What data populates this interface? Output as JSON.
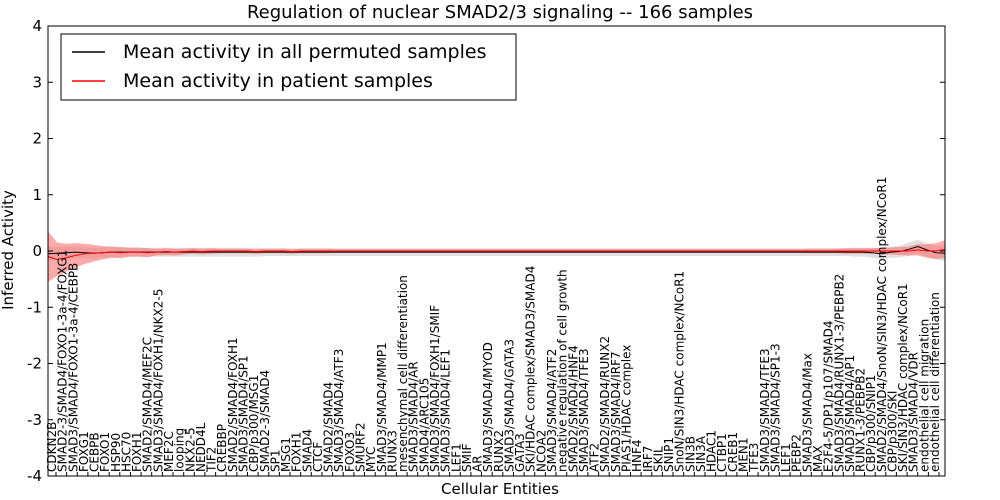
{
  "chart_data": {
    "type": "line",
    "title": "Regulation of nuclear SMAD2/3 signaling -- 166 samples",
    "xlabel": "Cellular Entities",
    "ylabel": "Inferred Activity",
    "ylim": [
      -4,
      4
    ],
    "yticks": [
      -4,
      -3,
      -2,
      -1,
      0,
      1,
      2,
      3,
      4
    ],
    "legend_position": "top-left",
    "series": [
      {
        "name": "Mean activity in all permuted samples",
        "color": "#000000",
        "band_color": "#bbbbbb",
        "values": [
          -0.05,
          -0.04,
          -0.03,
          -0.02,
          -0.03,
          -0.04,
          -0.03,
          -0.02,
          -0.02,
          -0.02,
          -0.02,
          -0.02,
          -0.02,
          -0.02,
          -0.02,
          -0.02,
          -0.02,
          -0.02,
          -0.02,
          -0.02,
          -0.02,
          -0.02,
          -0.02,
          -0.02,
          -0.02,
          -0.02,
          -0.02,
          -0.02,
          -0.02,
          -0.02,
          -0.02,
          -0.02,
          -0.02,
          -0.02,
          -0.02,
          -0.02,
          -0.02,
          -0.02,
          -0.02,
          -0.02,
          -0.02,
          -0.02,
          -0.02,
          -0.02,
          -0.02,
          -0.02,
          -0.02,
          -0.02,
          -0.02,
          -0.02,
          -0.02,
          -0.02,
          -0.02,
          -0.02,
          -0.02,
          -0.02,
          -0.02,
          -0.02,
          -0.02,
          -0.02,
          -0.02,
          -0.02,
          -0.02,
          -0.02,
          -0.02,
          -0.02,
          -0.02,
          -0.02,
          -0.02,
          -0.02,
          -0.02,
          -0.02,
          -0.02,
          -0.02,
          -0.02,
          -0.02,
          -0.02,
          -0.02,
          -0.02,
          -0.02,
          -0.02,
          -0.02,
          -0.02,
          -0.02,
          -0.02,
          -0.02,
          -0.02,
          -0.02,
          -0.02,
          -0.02,
          -0.02,
          -0.03,
          -0.05,
          -0.02,
          -0.01,
          0.03,
          0.08,
          0.02,
          -0.03,
          -0.04
        ],
        "band_halfwidth": [
          0.12,
          0.12,
          0.11,
          0.1,
          0.1,
          0.1,
          0.09,
          0.09,
          0.08,
          0.08,
          0.08,
          0.08,
          0.08,
          0.08,
          0.08,
          0.08,
          0.08,
          0.08,
          0.08,
          0.08,
          0.08,
          0.08,
          0.08,
          0.08,
          0.07,
          0.07,
          0.07,
          0.07,
          0.07,
          0.07,
          0.07,
          0.07,
          0.07,
          0.07,
          0.07,
          0.07,
          0.07,
          0.07,
          0.07,
          0.07,
          0.07,
          0.07,
          0.07,
          0.07,
          0.07,
          0.07,
          0.07,
          0.07,
          0.07,
          0.07,
          0.07,
          0.07,
          0.07,
          0.07,
          0.07,
          0.07,
          0.07,
          0.07,
          0.07,
          0.07,
          0.07,
          0.07,
          0.07,
          0.07,
          0.07,
          0.07,
          0.07,
          0.07,
          0.07,
          0.07,
          0.07,
          0.07,
          0.07,
          0.07,
          0.07,
          0.07,
          0.07,
          0.07,
          0.07,
          0.07,
          0.07,
          0.07,
          0.07,
          0.07,
          0.07,
          0.07,
          0.07,
          0.07,
          0.07,
          0.08,
          0.08,
          0.09,
          0.1,
          0.1,
          0.1,
          0.12,
          0.12,
          0.12,
          0.12,
          0.14
        ]
      },
      {
        "name": "Mean activity in patient samples",
        "color": "#ff0000",
        "band_color": "#ff6666",
        "values": [
          -0.1,
          -0.15,
          -0.12,
          -0.08,
          -0.05,
          -0.04,
          -0.03,
          -0.02,
          -0.03,
          -0.02,
          -0.02,
          -0.03,
          -0.02,
          -0.01,
          -0.02,
          -0.01,
          0.0,
          -0.01,
          0.0,
          0.0,
          0.0,
          0.0,
          0.0,
          -0.01,
          0.0,
          0.0,
          0.0,
          -0.01,
          0.0,
          0.0,
          0.0,
          0.0,
          0.0,
          0.0,
          0.0,
          0.0,
          0.0,
          0.0,
          0.0,
          0.0,
          0.0,
          0.0,
          0.0,
          0.0,
          0.0,
          0.0,
          0.0,
          0.0,
          0.0,
          0.0,
          0.0,
          0.0,
          0.0,
          0.0,
          0.0,
          0.0,
          0.0,
          0.0,
          0.0,
          0.0,
          0.0,
          0.0,
          0.0,
          0.0,
          0.0,
          0.0,
          0.0,
          0.0,
          0.0,
          0.0,
          0.0,
          0.0,
          0.0,
          0.0,
          0.0,
          0.0,
          0.0,
          0.0,
          0.0,
          0.0,
          0.0,
          0.0,
          0.0,
          0.0,
          0.0,
          0.0,
          0.0,
          0.0,
          0.0,
          0.0,
          0.0,
          0.0,
          0.0,
          0.0,
          0.0,
          0.0,
          0.02,
          0.0,
          0.0,
          0.03
        ],
        "band_halfwidth": [
          0.45,
          0.3,
          0.25,
          0.22,
          0.18,
          0.15,
          0.12,
          0.1,
          0.1,
          0.08,
          0.08,
          0.08,
          0.06,
          0.06,
          0.06,
          0.05,
          0.05,
          0.05,
          0.05,
          0.04,
          0.04,
          0.04,
          0.04,
          0.04,
          0.04,
          0.04,
          0.04,
          0.04,
          0.04,
          0.04,
          0.04,
          0.04,
          0.03,
          0.03,
          0.03,
          0.03,
          0.03,
          0.03,
          0.03,
          0.03,
          0.03,
          0.03,
          0.03,
          0.03,
          0.03,
          0.03,
          0.03,
          0.03,
          0.03,
          0.03,
          0.03,
          0.03,
          0.03,
          0.03,
          0.03,
          0.03,
          0.03,
          0.03,
          0.03,
          0.03,
          0.03,
          0.03,
          0.03,
          0.03,
          0.03,
          0.03,
          0.03,
          0.03,
          0.03,
          0.03,
          0.03,
          0.03,
          0.03,
          0.03,
          0.03,
          0.03,
          0.03,
          0.03,
          0.03,
          0.03,
          0.03,
          0.03,
          0.03,
          0.03,
          0.04,
          0.04,
          0.04,
          0.04,
          0.05,
          0.05,
          0.05,
          0.05,
          0.06,
          0.06,
          0.07,
          0.08,
          0.1,
          0.12,
          0.14,
          0.16
        ]
      }
    ],
    "entities": [
      "CDKN2B",
      "SMAD2-3/SMAD4/FOXO1-3a-4/FOXG1",
      "SMAD3/SMAD4/FOXO1-3a-4/CEBPB",
      "FOXG1",
      "CEBPB",
      "FOXO1",
      "HSP90",
      "HSC70",
      "FOXH1",
      "SMAD2/SMAD4/MEF2C",
      "SMAD3/SMAD4/FOXH1/NKX2-5",
      "MEF2C",
      "looping",
      "NKX2-5",
      "NEDD4L",
      "TIF2",
      "CREBBP",
      "SMAD2/SMAD4/FOXH1",
      "SMAD3/SMAD4/SP1",
      "CBP/p300/MSG1",
      "SMAD2-3/SMAD4",
      "SP1",
      "MSG1",
      "FOXH1",
      "SMAD4",
      "CTCF",
      "SMAD2/SMAD4",
      "SMAD3/SMAD4/ATF3",
      "FOXO3",
      "SMURF2",
      "MYC",
      "SMAD3/SMAD4/MMP1",
      "RUNX3",
      "mesenchymal cell differentiation",
      "SMAD3/SMAD4/AR",
      "SMAD4/ARC105",
      "SMAD3/SMAD4/FOXH1/SMIF",
      "SMAD3/SMAD4/LEF1",
      "LEF1",
      "SMIF",
      "AR",
      "SMAD3/SMAD4/MYOD",
      "RUNX2",
      "SMAD3/SMAD4/GATA3",
      "GATA3",
      "SKI/HDAC complex/SMAD3/SMAD4",
      "NCOA2",
      "SMAD3/SMAD4/ATF2",
      "negative regulation of cell growth",
      "SMAD2/SMAD4/HNF4",
      "SMAD3/SMAD4/TFE3",
      "ATF2",
      "SMAD2/SMAD4/RUNX2",
      "SMAD3/SMAD4/IRF7",
      "PIAS1/HDAC complex",
      "HNF4",
      "IRF7",
      "SKIL",
      "SNIP1",
      "SnoN/SIN3/HDAC complex/NCoR1",
      "SIN3B",
      "SIN3A",
      "HDAC1",
      "CTBP1",
      "CREB1",
      "MEN1",
      "TFE3",
      "SMAD3/SMAD4/TFE3",
      "SMAD3/SMAD4/SP1-3",
      "LEF1",
      "PEBP2",
      "SMAD3/SMAD4/Max",
      "MAX",
      "E2F4-5/DP1/p107/SMAD4",
      "SMAD3/SMAD4/RUNX1-3/PEBPB2",
      "SMAD3/SMAD4/AP1",
      "RUNX1-3/PEBPB2",
      "CBP/p300/SNIP1",
      "SMAD2/SMAD4/SnoN/SIN3/HDAC complex/NCoR1",
      "CBP/p300/SKI",
      "SKI/SIN3/HDAC complex/NCoR1",
      "SMAD3/SMAD4/VDR",
      "endothelial cell migration",
      "endothelial cell differentiation"
    ]
  },
  "legend": [
    {
      "label": "Mean activity in all permuted samples",
      "color": "#000000"
    },
    {
      "label": "Mean activity in patient samples",
      "color": "#ff0000"
    }
  ]
}
